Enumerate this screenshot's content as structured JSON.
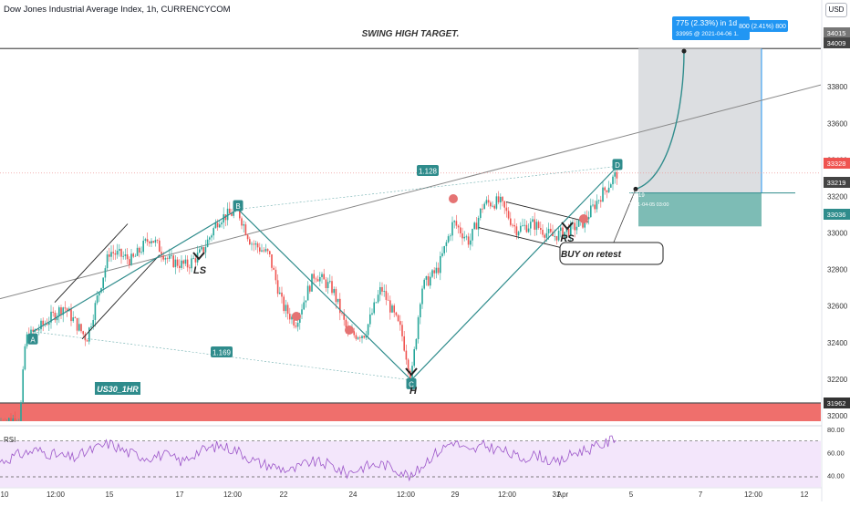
{
  "header": {
    "title": "Dow Jones Industrial Average Index, 1h, CURRENCYCOM",
    "currency_button": "USD"
  },
  "colors": {
    "up": "#26a69a",
    "down": "#ef5350",
    "pattern": "#2f8c8c",
    "label_bg": "#2f8c8c",
    "resistance_band": "#ef6f6c",
    "target_box": "#d6d8dc",
    "stop_box": "#6fb5ad",
    "rsi_line": "#9c56c9",
    "rsi_band": "#f3e6fb",
    "callout_bg": "#2196f3"
  },
  "chart_data": {
    "type": "candlestick",
    "symbol": "Dow Jones Industrial Average Index",
    "interval": "1h",
    "y_axis": {
      "ylim": [
        31950,
        34150
      ],
      "ticks": [
        32000,
        32200,
        32400,
        32600,
        32800,
        33000,
        33200,
        33400,
        33600,
        33800
      ]
    },
    "x_axis": {
      "ticks": [
        "10",
        "12:00",
        "15",
        "17",
        "12:00",
        "22",
        "24",
        "12:00",
        "29",
        "12:00",
        "31",
        "Apr",
        "5",
        "7",
        "12:00",
        "12"
      ]
    },
    "price_labels": [
      {
        "value": 34015,
        "text": "34015"
      },
      {
        "value": 34009,
        "text": "34009"
      },
      {
        "value": 33328,
        "text": "33328"
      },
      {
        "value": 33219,
        "text": "33219"
      },
      {
        "value": 33036,
        "text": "33036"
      },
      {
        "value": 31962,
        "text": "31962"
      }
    ],
    "annotations": {
      "swing_high": "SWING HIGH TARGET.",
      "ls": "LS",
      "h": "H",
      "rs": "RS",
      "symbol_tag": "US30_1HR",
      "buy": "BUY on retest",
      "fib_upper": "1.128",
      "fib_lower": "1.169",
      "point_a": "A",
      "point_b": "B",
      "point_c": "C",
      "point_d": "D",
      "target_callout_line1": "775 (2.33%) in 1d",
      "target_callout_line2": "33995 @ 2021-04-06 1.",
      "target_callout_side": "800 (2.41%) 800",
      "entry_value": "33219",
      "entry_date": "2021-04-05 03:00"
    },
    "harmonic_points": [
      {
        "label": "A",
        "x": 36,
        "y": 32460
      },
      {
        "label": "B",
        "x": 261,
        "y": 33130
      },
      {
        "label": "C",
        "x": 451,
        "y": 32195
      },
      {
        "label": "D",
        "x": 677,
        "y": 33365
      }
    ],
    "path_anchors": [
      {
        "x": 0,
        "y": 31965
      },
      {
        "x": 22,
        "y": 31990
      },
      {
        "x": 28,
        "y": 32420
      },
      {
        "x": 48,
        "y": 32500
      },
      {
        "x": 70,
        "y": 32600
      },
      {
        "x": 95,
        "y": 32420
      },
      {
        "x": 120,
        "y": 32900
      },
      {
        "x": 145,
        "y": 32850
      },
      {
        "x": 165,
        "y": 32980
      },
      {
        "x": 185,
        "y": 32850
      },
      {
        "x": 205,
        "y": 32820
      },
      {
        "x": 222,
        "y": 32900
      },
      {
        "x": 240,
        "y": 33080
      },
      {
        "x": 261,
        "y": 33120
      },
      {
        "x": 275,
        "y": 32950
      },
      {
        "x": 295,
        "y": 32880
      },
      {
        "x": 310,
        "y": 32600
      },
      {
        "x": 324,
        "y": 32510
      },
      {
        "x": 345,
        "y": 32780
      },
      {
        "x": 365,
        "y": 32690
      },
      {
        "x": 382,
        "y": 32440
      },
      {
        "x": 400,
        "y": 32450
      },
      {
        "x": 418,
        "y": 32700
      },
      {
        "x": 440,
        "y": 32460
      },
      {
        "x": 451,
        "y": 32200
      },
      {
        "x": 462,
        "y": 32700
      },
      {
        "x": 480,
        "y": 32800
      },
      {
        "x": 497,
        "y": 33060
      },
      {
        "x": 515,
        "y": 32950
      },
      {
        "x": 530,
        "y": 33160
      },
      {
        "x": 548,
        "y": 33170
      },
      {
        "x": 566,
        "y": 33020
      },
      {
        "x": 585,
        "y": 33050
      },
      {
        "x": 605,
        "y": 32980
      },
      {
        "x": 622,
        "y": 33010
      },
      {
        "x": 640,
        "y": 33060
      },
      {
        "x": 658,
        "y": 33200
      },
      {
        "x": 677,
        "y": 33330
      }
    ],
    "rsi": {
      "label": "RSI",
      "ylim": [
        35,
        80
      ],
      "ticks": [
        40,
        60,
        80
      ],
      "tick_labels": [
        "40.00",
        "60.00",
        "80.00"
      ],
      "band": [
        30,
        70
      ],
      "anchors": [
        {
          "x": 0,
          "y": 52
        },
        {
          "x": 20,
          "y": 58
        },
        {
          "x": 40,
          "y": 62
        },
        {
          "x": 60,
          "y": 58
        },
        {
          "x": 80,
          "y": 55
        },
        {
          "x": 100,
          "y": 62
        },
        {
          "x": 120,
          "y": 68
        },
        {
          "x": 140,
          "y": 60
        },
        {
          "x": 160,
          "y": 56
        },
        {
          "x": 180,
          "y": 58
        },
        {
          "x": 200,
          "y": 52
        },
        {
          "x": 215,
          "y": 60
        },
        {
          "x": 240,
          "y": 66
        },
        {
          "x": 260,
          "y": 62
        },
        {
          "x": 280,
          "y": 52
        },
        {
          "x": 300,
          "y": 48
        },
        {
          "x": 320,
          "y": 44
        },
        {
          "x": 340,
          "y": 52
        },
        {
          "x": 360,
          "y": 50
        },
        {
          "x": 380,
          "y": 42
        },
        {
          "x": 400,
          "y": 48
        },
        {
          "x": 420,
          "y": 50
        },
        {
          "x": 440,
          "y": 44
        },
        {
          "x": 451,
          "y": 38
        },
        {
          "x": 470,
          "y": 55
        },
        {
          "x": 497,
          "y": 70
        },
        {
          "x": 515,
          "y": 60
        },
        {
          "x": 530,
          "y": 66
        },
        {
          "x": 550,
          "y": 62
        },
        {
          "x": 570,
          "y": 55
        },
        {
          "x": 590,
          "y": 58
        },
        {
          "x": 610,
          "y": 50
        },
        {
          "x": 630,
          "y": 60
        },
        {
          "x": 650,
          "y": 64
        },
        {
          "x": 665,
          "y": 68
        },
        {
          "x": 677,
          "y": 75
        }
      ]
    }
  }
}
